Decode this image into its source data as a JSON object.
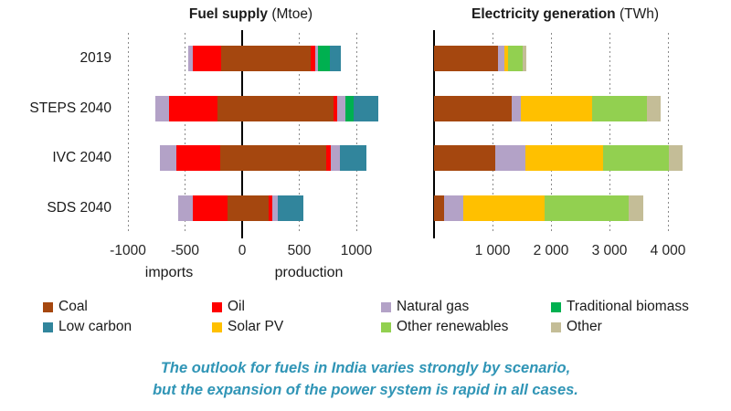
{
  "caption": {
    "line1": "The outlook for fuels in India varies strongly by scenario,",
    "line2": "but the expansion of the power system is rapid in all cases.",
    "color": "#3095B6"
  },
  "fuels": {
    "coal": {
      "label": "Coal",
      "color": "#A5470F"
    },
    "oil": {
      "label": "Oil",
      "color": "#FF0000"
    },
    "natural_gas": {
      "label": "Natural gas",
      "color": "#B3A2C7"
    },
    "traditional_biomass": {
      "label": "Traditional biomass",
      "color": "#00B050"
    },
    "low_carbon": {
      "label": "Low carbon",
      "color": "#31859C"
    },
    "solar_pv": {
      "label": "Solar PV",
      "color": "#FFC000"
    },
    "other_renewables": {
      "label": "Other renewables",
      "color": "#92D050"
    },
    "other": {
      "label": "Other",
      "color": "#C4BD97"
    }
  },
  "legend": {
    "rows": [
      [
        "coal",
        "oil",
        "natural_gas",
        "traditional_biomass"
      ],
      [
        "low_carbon",
        "solar_pv",
        "other_renewables",
        "other"
      ]
    ]
  },
  "chart_data": [
    {
      "id": "fuel_supply",
      "type": "bar",
      "orientation": "horizontal",
      "diverging": true,
      "title": "Fuel supply",
      "unit": "(Mtoe)",
      "xlabel_negative": "imports",
      "xlabel_positive": "production",
      "xlim": [
        -1100,
        1250
      ],
      "grid": "dotted-vertical",
      "categories": [
        "2019",
        "STEPS 2040",
        "IVC 2040",
        "SDS 2040"
      ],
      "x_ticks": [
        {
          "value": -1000,
          "label": "-1000"
        },
        {
          "value": -500,
          "label": "-500"
        },
        {
          "value": 0,
          "label": "0"
        },
        {
          "value": 500,
          "label": "500"
        },
        {
          "value": 1000,
          "label": "1000"
        }
      ],
      "rows": [
        {
          "category": "2019",
          "imports": [
            {
              "fuel": "coal",
              "value": 185
            },
            {
              "fuel": "oil",
              "value": 250
            },
            {
              "fuel": "natural_gas",
              "value": 40
            }
          ],
          "production": [
            {
              "fuel": "coal",
              "value": 600
            },
            {
              "fuel": "oil",
              "value": 40
            },
            {
              "fuel": "natural_gas",
              "value": 20
            },
            {
              "fuel": "traditional_biomass",
              "value": 105
            },
            {
              "fuel": "low_carbon",
              "value": 95
            }
          ]
        },
        {
          "category": "STEPS 2040",
          "imports": [
            {
              "fuel": "coal",
              "value": 215
            },
            {
              "fuel": "oil",
              "value": 425
            },
            {
              "fuel": "natural_gas",
              "value": 120
            }
          ],
          "production": [
            {
              "fuel": "coal",
              "value": 800
            },
            {
              "fuel": "oil",
              "value": 35
            },
            {
              "fuel": "natural_gas",
              "value": 65
            },
            {
              "fuel": "traditional_biomass",
              "value": 75
            },
            {
              "fuel": "low_carbon",
              "value": 220
            }
          ]
        },
        {
          "category": "IVC 2040",
          "imports": [
            {
              "fuel": "coal",
              "value": 195
            },
            {
              "fuel": "oil",
              "value": 385
            },
            {
              "fuel": "natural_gas",
              "value": 140
            }
          ],
          "production": [
            {
              "fuel": "coal",
              "value": 735
            },
            {
              "fuel": "oil",
              "value": 40
            },
            {
              "fuel": "natural_gas",
              "value": 80
            },
            {
              "fuel": "low_carbon",
              "value": 230
            }
          ]
        },
        {
          "category": "SDS 2040",
          "imports": [
            {
              "fuel": "coal",
              "value": 130
            },
            {
              "fuel": "oil",
              "value": 300
            },
            {
              "fuel": "natural_gas",
              "value": 130
            }
          ],
          "production": [
            {
              "fuel": "coal",
              "value": 235
            },
            {
              "fuel": "oil",
              "value": 30
            },
            {
              "fuel": "natural_gas",
              "value": 45
            },
            {
              "fuel": "low_carbon",
              "value": 225
            }
          ]
        }
      ]
    },
    {
      "id": "electricity_generation",
      "type": "bar",
      "orientation": "horizontal",
      "diverging": false,
      "title": "Electricity generation",
      "unit": "(TWh)",
      "xlim": [
        0,
        4480
      ],
      "grid": "dotted-vertical",
      "categories": [
        "2019",
        "STEPS 2040",
        "IVC 2040",
        "SDS 2040"
      ],
      "x_ticks": [
        {
          "value": 1000,
          "label": "1 000"
        },
        {
          "value": 2000,
          "label": "2 000"
        },
        {
          "value": 3000,
          "label": "3 000"
        },
        {
          "value": 4000,
          "label": "4 000"
        }
      ],
      "rows": [
        {
          "category": "2019",
          "production": [
            {
              "fuel": "coal",
              "value": 1100
            },
            {
              "fuel": "natural_gas",
              "value": 105
            },
            {
              "fuel": "solar_pv",
              "value": 65
            },
            {
              "fuel": "other_renewables",
              "value": 250
            },
            {
              "fuel": "other",
              "value": 65
            }
          ]
        },
        {
          "category": "STEPS 2040",
          "production": [
            {
              "fuel": "coal",
              "value": 1330
            },
            {
              "fuel": "natural_gas",
              "value": 155
            },
            {
              "fuel": "solar_pv",
              "value": 1225
            },
            {
              "fuel": "other_renewables",
              "value": 935
            },
            {
              "fuel": "other",
              "value": 235
            }
          ]
        },
        {
          "category": "IVC 2040",
          "production": [
            {
              "fuel": "coal",
              "value": 1040
            },
            {
              "fuel": "natural_gas",
              "value": 520
            },
            {
              "fuel": "solar_pv",
              "value": 1330
            },
            {
              "fuel": "other_renewables",
              "value": 1120
            },
            {
              "fuel": "other",
              "value": 235
            }
          ]
        },
        {
          "category": "SDS 2040",
          "production": [
            {
              "fuel": "coal",
              "value": 170
            },
            {
              "fuel": "natural_gas",
              "value": 325
            },
            {
              "fuel": "solar_pv",
              "value": 1400
            },
            {
              "fuel": "other_renewables",
              "value": 1440
            },
            {
              "fuel": "other",
              "value": 250
            }
          ]
        }
      ]
    }
  ]
}
